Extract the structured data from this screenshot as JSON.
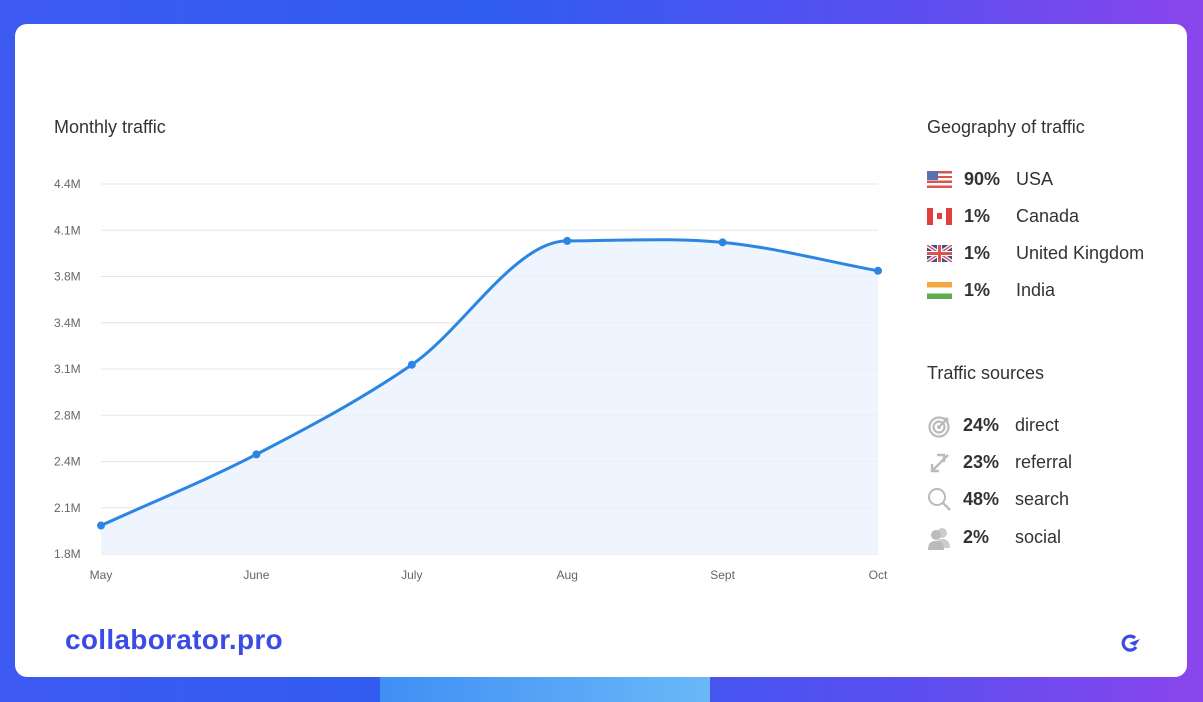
{
  "chart_section": {
    "title": "Monthly traffic"
  },
  "chart_data": {
    "type": "area",
    "title": "Monthly traffic",
    "categories": [
      "May",
      "June",
      "July",
      "Aug",
      "Sept",
      "Oct"
    ],
    "values": [
      2.0,
      2.5,
      3.13,
      4.0,
      3.99,
      3.79
    ],
    "unit": "M",
    "y_ticks": [
      "1.8M",
      "2.1M",
      "2.4M",
      "2.8M",
      "3.1M",
      "3.4M",
      "3.8M",
      "4.1M",
      "4.4M"
    ],
    "ylim": [
      1.8,
      4.4
    ],
    "grid": true,
    "color": "#2b86e3"
  },
  "geography": {
    "title": "Geography of traffic",
    "items": [
      {
        "flag": "us-flag-icon",
        "pct": "90%",
        "country": "USA"
      },
      {
        "flag": "ca-flag-icon",
        "pct": "1%",
        "country": "Canada"
      },
      {
        "flag": "uk-flag-icon",
        "pct": "1%",
        "country": "United Kingdom"
      },
      {
        "flag": "in-flag-icon",
        "pct": "1%",
        "country": "India"
      }
    ]
  },
  "sources": {
    "title": "Traffic sources",
    "items": [
      {
        "icon": "target-icon",
        "pct": "24%",
        "label": "direct"
      },
      {
        "icon": "referral-arrows-icon",
        "pct": "23%",
        "label": "referral"
      },
      {
        "icon": "search-icon",
        "pct": "48%",
        "label": "search"
      },
      {
        "icon": "users-icon",
        "pct": "2%",
        "label": "social"
      }
    ]
  },
  "brand": {
    "name": "collaborator.pro",
    "color": "#3b4ce6"
  }
}
